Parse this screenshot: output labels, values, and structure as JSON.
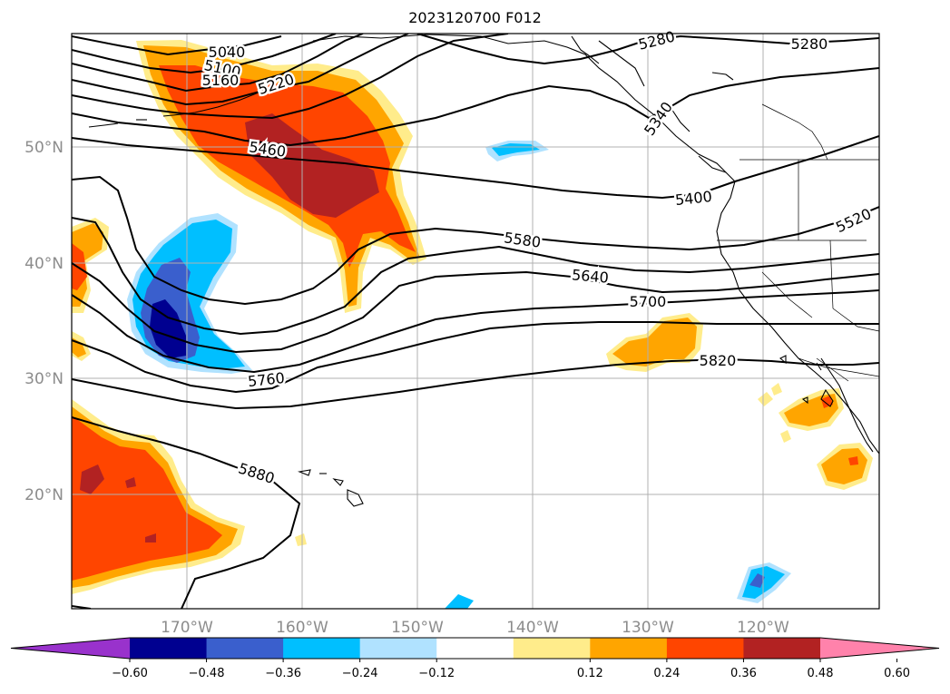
{
  "title": "2023120700 F012",
  "lat_labels": [
    "50°N",
    "40°N",
    "30°N",
    "20°N"
  ],
  "lon_labels": [
    "170°W",
    "160°W",
    "150°W",
    "140°W",
    "130°W",
    "120°W"
  ],
  "contour_labels": [
    "5040",
    "5100",
    "5160",
    "5220",
    "5280",
    "5280",
    "5340",
    "5400",
    "5460",
    "5520",
    "5580",
    "5640",
    "5700",
    "5760",
    "5820",
    "5880"
  ],
  "colorbar": {
    "ticks": [
      "−0.60",
      "−0.48",
      "−0.36",
      "−0.24",
      "−0.12",
      "0.12",
      "0.24",
      "0.36",
      "0.48",
      "0.60"
    ],
    "colors": [
      "#9932cc",
      "#000090",
      "#3a5fcd",
      "#00bfff",
      "#b0e2ff",
      "#ffffff",
      "#ffec8b",
      "#ffa500",
      "#ff4500",
      "#b22222",
      "#ff82ab"
    ]
  }
}
